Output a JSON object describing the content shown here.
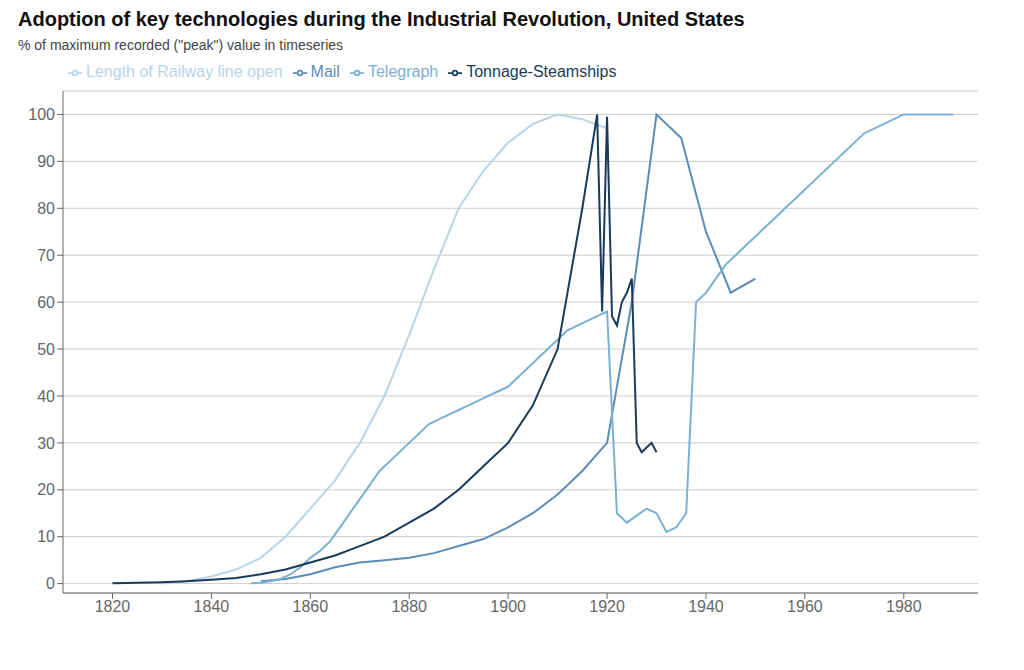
{
  "chart_data": {
    "type": "line",
    "title": "Adoption of key technologies during the Industrial Revolution, United States",
    "subtitle": "% of maximum recorded (\"peak\") value in timeseries",
    "series": [
      {
        "name": "Length of Railway line open",
        "color": "#b8d4e8",
        "x": [
          1830,
          1835,
          1840,
          1845,
          1850,
          1855,
          1860,
          1865,
          1870,
          1875,
          1880,
          1885,
          1890,
          1895,
          1900,
          1905,
          1910,
          1915,
          1920
        ],
        "values": [
          0.1,
          0.5,
          1.5,
          3.0,
          5.5,
          10.0,
          16.0,
          22.0,
          30.0,
          40.0,
          53.0,
          67.0,
          80.0,
          88.0,
          94.0,
          98.0,
          100.0,
          99.0,
          97.0
        ]
      },
      {
        "name": "Mail",
        "color": "#5b8db8",
        "x": [
          1850,
          1855,
          1860,
          1865,
          1870,
          1875,
          1880,
          1885,
          1890,
          1895,
          1900,
          1905,
          1910,
          1915,
          1920,
          1925,
          1930,
          1935,
          1940,
          1945,
          1950
        ],
        "values": [
          0.5,
          1.0,
          2.0,
          3.5,
          4.5,
          5.0,
          5.5,
          6.5,
          8.0,
          9.5,
          12.0,
          15.0,
          19.0,
          24.0,
          30.0,
          60.0,
          100.0,
          95.0,
          75.0,
          62.0,
          65.0
        ]
      },
      {
        "name": "Telegraph",
        "color": "#7ab0d4",
        "x": [
          1848,
          1850,
          1852,
          1854,
          1856,
          1858,
          1860,
          1862,
          1864,
          1866,
          1868,
          1870,
          1872,
          1874,
          1876,
          1878,
          1880,
          1882,
          1884,
          1886,
          1888,
          1890,
          1892,
          1894,
          1896,
          1898,
          1900,
          1902,
          1904,
          1906,
          1908,
          1910,
          1912,
          1914,
          1916,
          1918,
          1920,
          1922,
          1924,
          1926,
          1928,
          1930,
          1932,
          1934,
          1936,
          1938,
          1940,
          1942,
          1944,
          1946,
          1948,
          1950,
          1952,
          1954,
          1956,
          1958,
          1960,
          1962,
          1964,
          1966,
          1968,
          1970,
          1972,
          1974,
          1976,
          1978,
          1980,
          1982,
          1984,
          1986,
          1988,
          1990
        ],
        "values": [
          0.1,
          0.2,
          0.5,
          1.0,
          2.0,
          3.5,
          5.5,
          7.0,
          9.0,
          12.0,
          15.0,
          18.0,
          21.0,
          24.0,
          26.0,
          28.0,
          30.0,
          32.0,
          34.0,
          35.0,
          36.0,
          37.0,
          38.0,
          39.0,
          40.0,
          41.0,
          42.0,
          44.0,
          46.0,
          48.0,
          50.0,
          52.0,
          54.0,
          55.0,
          56.0,
          57.0,
          58.0,
          15.0,
          13.0,
          14.5,
          16.0,
          15.0,
          11.0,
          12.0,
          15.0,
          60.0,
          62.0,
          65.0,
          68.0,
          70.0,
          72.0,
          74.0,
          76.0,
          78.0,
          80.0,
          82.0,
          84.0,
          86.0,
          88.0,
          90.0,
          92.0,
          94.0,
          96.0,
          97.0,
          98.0,
          99.0,
          100.0,
          100.0,
          100.0,
          100.0,
          100.0,
          100.0
        ]
      },
      {
        "name": "Tonnage-Steamships",
        "color": "#1a3a5c",
        "x": [
          1820,
          1825,
          1830,
          1835,
          1840,
          1845,
          1850,
          1855,
          1860,
          1865,
          1870,
          1875,
          1880,
          1885,
          1890,
          1895,
          1900,
          1905,
          1910,
          1915,
          1918,
          1919,
          1920,
          1921,
          1922,
          1923,
          1924,
          1925,
          1926,
          1927,
          1928,
          1929,
          1930
        ],
        "values": [
          0.1,
          0.2,
          0.3,
          0.5,
          0.8,
          1.2,
          2.0,
          3.0,
          4.5,
          6.0,
          8.0,
          10.0,
          13.0,
          16.0,
          20.0,
          25.0,
          30.0,
          38.0,
          50.0,
          80.0,
          100.0,
          58.0,
          99.5,
          57.0,
          55.0,
          60.0,
          62.0,
          65.0,
          30.0,
          28.0,
          29.0,
          30.0,
          28.0
        ]
      }
    ],
    "xlim": [
      1810,
      1995
    ],
    "ylim": [
      -2,
      105
    ],
    "xticks": [
      1820,
      1840,
      1860,
      1880,
      1900,
      1920,
      1940,
      1960,
      1980
    ],
    "yticks": [
      0,
      10,
      20,
      30,
      40,
      50,
      60,
      70,
      80,
      90,
      100
    ],
    "grid": true,
    "legend": "upper left"
  }
}
